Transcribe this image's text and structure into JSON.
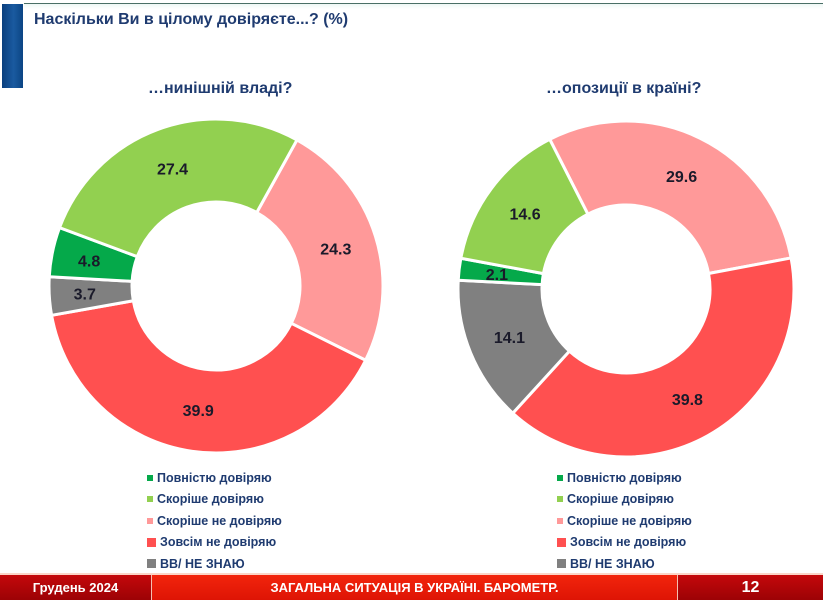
{
  "header": {
    "title": "Наскільки Ви в цілому довіряєте...? (%)"
  },
  "colors": {
    "full_trust": "#05a94a",
    "rather_trust": "#92d050",
    "rather_distrust": "#ff9999",
    "no_trust": "#ff5050",
    "dont_know": "#808080",
    "title_text": "#1f3b70",
    "accent_blue": "#0d4a8c",
    "footer_red": "#e8190a",
    "footer_dark_red": "#b00508"
  },
  "legend_labels": [
    "Повністю довіряю",
    "Скоріше довіряю",
    "Скоріше не довіряю",
    "Зовсім не довіряю",
    "ВВ/ НЕ ЗНАЮ"
  ],
  "charts": {
    "left": {
      "subtitle": "…нинішній владі?"
    },
    "right": {
      "subtitle": "…опозиції в країні?"
    }
  },
  "footer": {
    "date": "Грудень 2024",
    "title": "ЗАГАЛЬНА СИТУАЦІЯ В УКРАЇНІ. БАРОМЕТР.",
    "page_number": "12"
  },
  "chart_data": [
    {
      "type": "pie",
      "variant": "donut",
      "title": "…нинішній владі?",
      "suptitle": "Наскільки Ви в цілому довіряєте...? (%)",
      "categories": [
        "Повністю довіряю",
        "Скоріше довіряю",
        "Скоріше не довіряю",
        "Зовсім не довіряю",
        "ВВ/ НЕ ЗНАЮ"
      ],
      "values": [
        4.8,
        27.4,
        24.3,
        39.9,
        3.7
      ],
      "colors": [
        "#05a94a",
        "#92d050",
        "#ff9999",
        "#ff5050",
        "#808080"
      ],
      "legend_position": "bottom"
    },
    {
      "type": "pie",
      "variant": "donut",
      "title": "…опозиції в країні?",
      "suptitle": "Наскільки Ви в цілому довіряєте...? (%)",
      "categories": [
        "Повністю довіряю",
        "Скоріше довіряю",
        "Скоріше не довіряю",
        "Зовсім не довіряю",
        "ВВ/ НЕ ЗНАЮ"
      ],
      "values": [
        2.1,
        14.6,
        29.6,
        39.8,
        14.1
      ],
      "colors": [
        "#05a94a",
        "#92d050",
        "#ff9999",
        "#ff5050",
        "#808080"
      ],
      "legend_position": "bottom"
    }
  ]
}
